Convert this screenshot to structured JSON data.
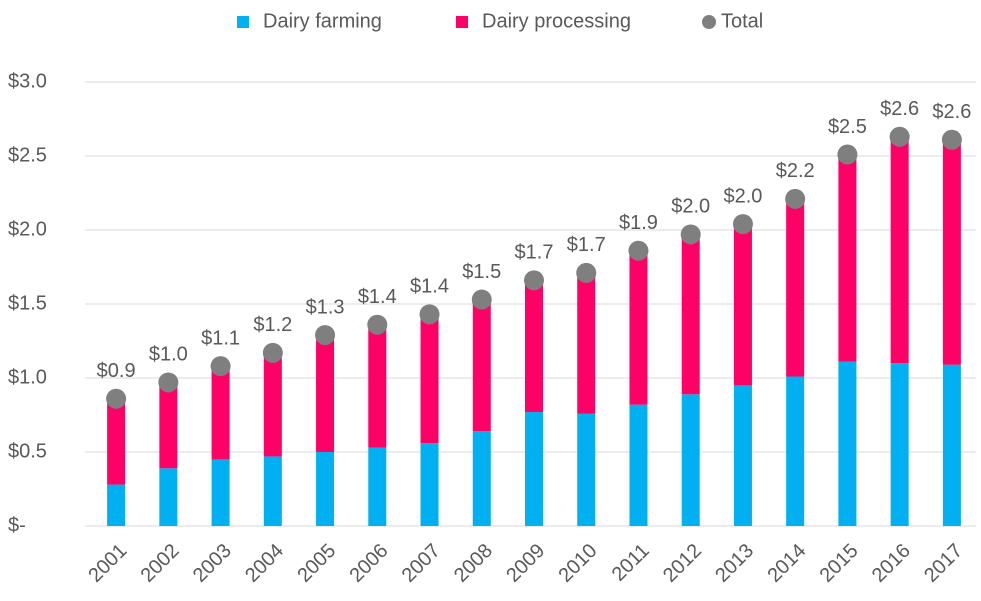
{
  "chart_data": {
    "type": "bar",
    "stacked": true,
    "categories": [
      "2001",
      "2002",
      "2003",
      "2004",
      "2005",
      "2006",
      "2007",
      "2008",
      "2009",
      "2010",
      "2011",
      "2012",
      "2013",
      "2014",
      "2015",
      "2016",
      "2017"
    ],
    "series": [
      {
        "name": "Dairy farming",
        "color": "#00b0f0",
        "values": [
          0.28,
          0.39,
          0.45,
          0.47,
          0.5,
          0.53,
          0.56,
          0.64,
          0.77,
          0.76,
          0.82,
          0.89,
          0.95,
          1.01,
          1.11,
          1.1,
          1.09
        ]
      },
      {
        "name": "Dairy processing",
        "color": "#ff0066",
        "values": [
          0.58,
          0.58,
          0.63,
          0.7,
          0.79,
          0.83,
          0.87,
          0.89,
          0.89,
          0.95,
          1.04,
          1.08,
          1.09,
          1.2,
          1.4,
          1.53,
          1.52
        ]
      },
      {
        "name": "Total",
        "color": "#7f7f7f",
        "marker": "circle",
        "values": [
          0.86,
          0.97,
          1.08,
          1.17,
          1.29,
          1.36,
          1.43,
          1.53,
          1.66,
          1.71,
          1.86,
          1.97,
          2.04,
          2.21,
          2.51,
          2.63,
          2.61
        ],
        "value_labels": [
          "$0.9",
          "$1.0",
          "$1.1",
          "$1.2",
          "$1.3",
          "$1.4",
          "$1.4",
          "$1.5",
          "$1.7",
          "$1.7",
          "$1.9",
          "$2.0",
          "$2.0",
          "$2.2",
          "$2.5",
          "$2.6",
          "$2.6"
        ]
      }
    ],
    "ylim": [
      0,
      3.0
    ],
    "yticks": [
      {
        "value": 0,
        "label": "$-"
      },
      {
        "value": 0.5,
        "label": "$0.5"
      },
      {
        "value": 1.0,
        "label": "$1.0"
      },
      {
        "value": 1.5,
        "label": "$1.5"
      },
      {
        "value": 2.0,
        "label": "$2.0"
      },
      {
        "value": 2.5,
        "label": "$2.5"
      },
      {
        "value": 3.0,
        "label": "$3.0"
      }
    ],
    "grid": true,
    "legend": "top"
  }
}
